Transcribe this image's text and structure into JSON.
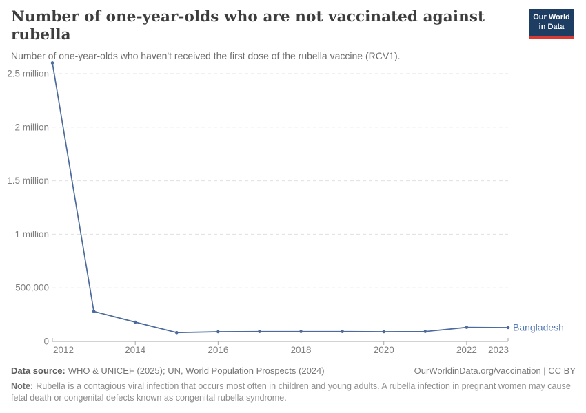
{
  "header": {
    "title": "Number of one-year-olds who are not vaccinated against rubella",
    "subtitle": "Number of one-year-olds who haven't received the first dose of the rubella vaccine (RCV1).",
    "logo": {
      "line1": "Our World",
      "line2": "in Data",
      "bg_color": "#1d3d63",
      "accent_color": "#d93a34"
    }
  },
  "chart_data": {
    "type": "line",
    "title": "Number of one-year-olds who are not vaccinated against rubella",
    "subtitle": "Number of one-year-olds who haven't received the first dose of the rubella vaccine (RCV1).",
    "x": [
      2012,
      2013,
      2014,
      2015,
      2016,
      2017,
      2018,
      2019,
      2020,
      2021,
      2022,
      2023
    ],
    "series": [
      {
        "name": "Bangladesh",
        "color": "#4c6a9c",
        "values": [
          2600000,
          280000,
          180000,
          82000,
          90000,
          92000,
          92000,
          92000,
          90000,
          92000,
          131000,
          129000
        ]
      }
    ],
    "xlabel": "",
    "ylabel": "",
    "ylim": [
      0,
      2600000
    ],
    "xlim": [
      2012,
      2023
    ],
    "grid": "horizontal-dashed",
    "legend_position": "end-of-line",
    "yticks": [
      {
        "value": 0,
        "label": "0"
      },
      {
        "value": 500000,
        "label": "500,000"
      },
      {
        "value": 1000000,
        "label": "1 million"
      },
      {
        "value": 1500000,
        "label": "1.5 million"
      },
      {
        "value": 2000000,
        "label": "2 million"
      },
      {
        "value": 2500000,
        "label": "2.5 million"
      }
    ],
    "xticks": [
      2012,
      2014,
      2016,
      2018,
      2020,
      2022,
      2023
    ],
    "colors": {
      "grid": "#e0e0e0",
      "axis": "#a6a6a6",
      "tick_text": "#7f7f7f",
      "series_label": "#577bb4"
    }
  },
  "footer": {
    "source_label": "Data source:",
    "source_text": "WHO & UNICEF (2025); UN, World Population Prospects (2024)",
    "credit": "OurWorldinData.org/vaccination | CC BY",
    "note_label": "Note:",
    "note_text": "Rubella is a contagious viral infection that occurs most often in children and young adults. A rubella infection in pregnant women may cause fetal death or congenital defects known as congenital rubella syndrome."
  }
}
